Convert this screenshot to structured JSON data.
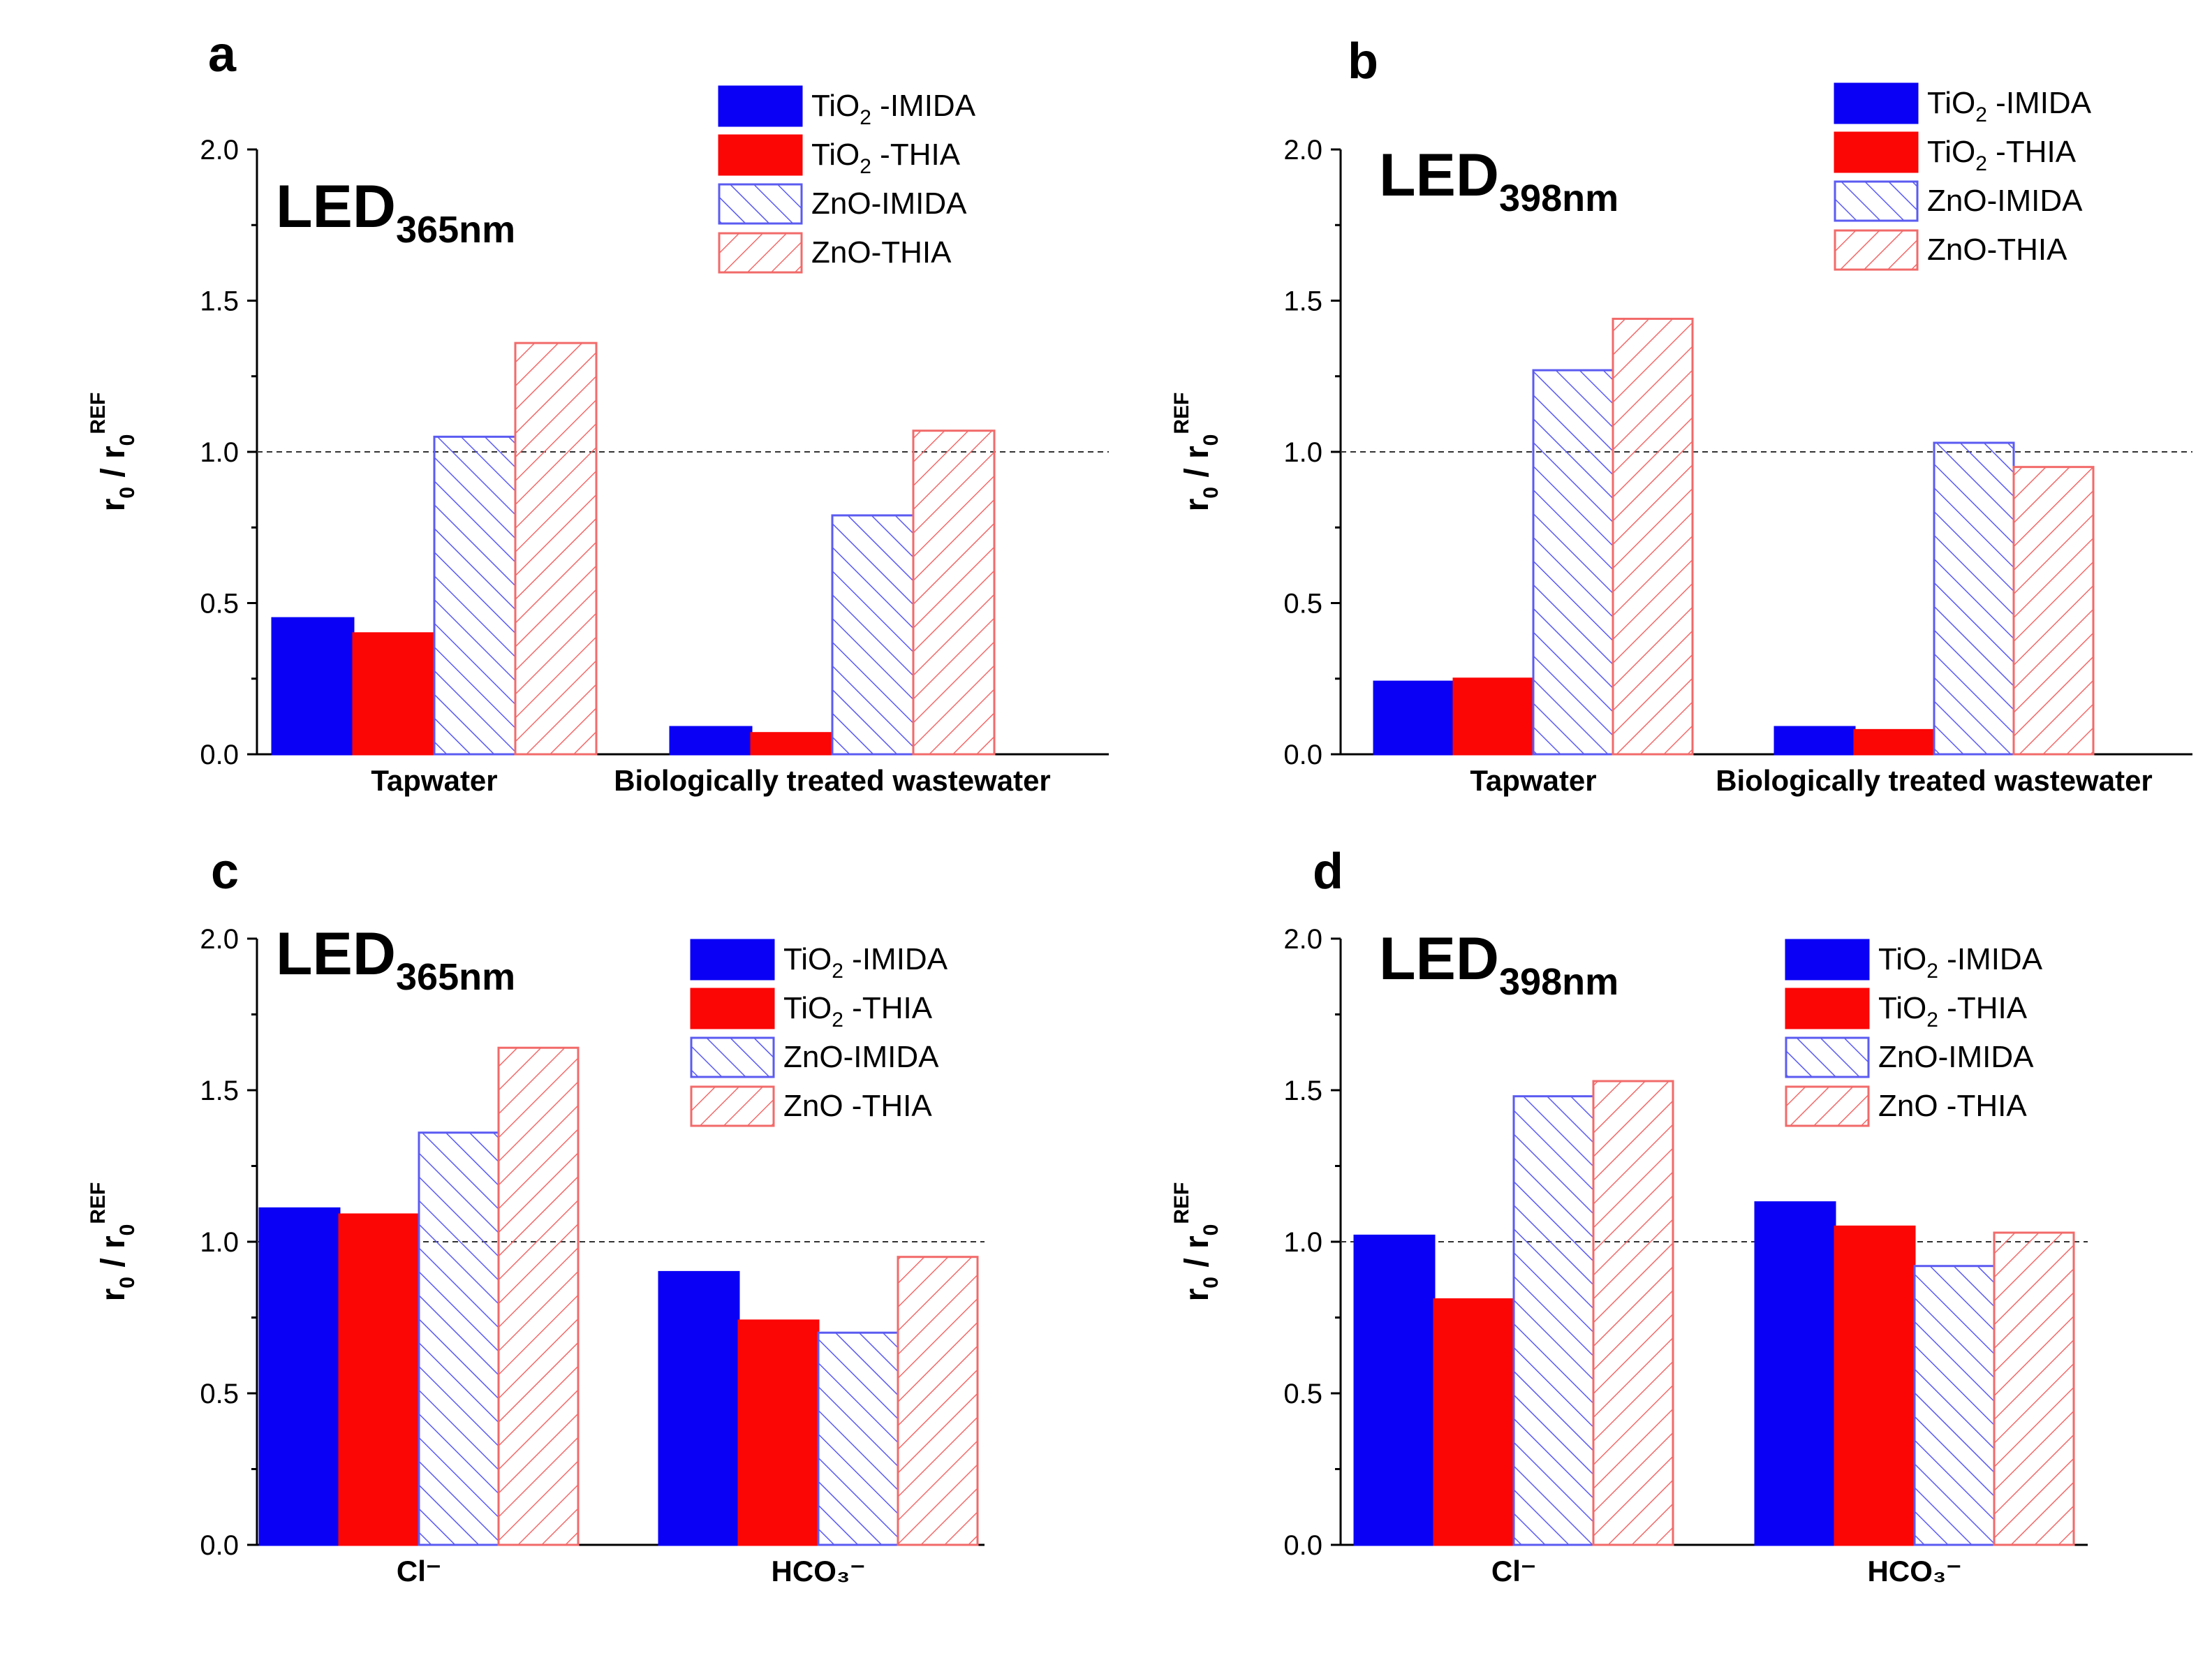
{
  "chart_data": [
    {
      "type": "bar",
      "panel_label": "a",
      "annotation": {
        "base": "LED",
        "sub": "365nm"
      },
      "ylabel": {
        "main": "r",
        "sub": "0",
        "sep": " / r",
        "sub2": "0",
        "sup": "REF"
      },
      "categories": [
        "Tapwater",
        "Biologically treated wastewater"
      ],
      "ylim": [
        0,
        2.0
      ],
      "yticks": [
        "0.0",
        "0.5",
        "1.0",
        "1.5",
        "2.0"
      ],
      "reference_line": 1.0,
      "legend_position": "top-right",
      "series": [
        {
          "name": "TiO2 -IMIDA",
          "legend": {
            "base": "TiO",
            "sub": "2",
            "rest": " -IMIDA"
          },
          "color": "#0a00f5",
          "pattern": "solid",
          "values": [
            0.45,
            0.09
          ]
        },
        {
          "name": "TiO2 -THIA",
          "legend": {
            "base": "TiO",
            "sub": "2",
            "rest": " -THIA"
          },
          "color": "#fc0505",
          "pattern": "solid",
          "values": [
            0.4,
            0.07
          ]
        },
        {
          "name": "ZnO-IMIDA",
          "legend": {
            "base": "ZnO-IMIDA",
            "sub": "",
            "rest": ""
          },
          "color": "#5b5bf2",
          "pattern": "hatch-right",
          "values": [
            1.05,
            0.79
          ]
        },
        {
          "name": "ZnO-THIA",
          "legend": {
            "base": "ZnO-THIA",
            "sub": "",
            "rest": ""
          },
          "color": "#f26a6a",
          "pattern": "hatch-left",
          "values": [
            1.36,
            1.07
          ]
        }
      ]
    },
    {
      "type": "bar",
      "panel_label": "b",
      "annotation": {
        "base": "LED",
        "sub": "398nm"
      },
      "ylabel": {
        "main": "r",
        "sub": "0",
        "sep": " / r",
        "sub2": "0",
        "sup": "REF"
      },
      "categories": [
        "Tapwater",
        "Biologically treated wastewater"
      ],
      "ylim": [
        0,
        2.0
      ],
      "yticks": [
        "0.0",
        "0.5",
        "1.0",
        "1.5",
        "2.0"
      ],
      "reference_line": 1.0,
      "legend_position": "top-right",
      "series": [
        {
          "name": "TiO2 -IMIDA",
          "legend": {
            "base": "TiO",
            "sub": "2",
            "rest": " -IMIDA"
          },
          "color": "#0a00f5",
          "pattern": "solid",
          "values": [
            0.24,
            0.09
          ]
        },
        {
          "name": "TiO2 -THIA",
          "legend": {
            "base": "TiO",
            "sub": "2",
            "rest": " -THIA"
          },
          "color": "#fc0505",
          "pattern": "solid",
          "values": [
            0.25,
            0.08
          ]
        },
        {
          "name": "ZnO-IMIDA",
          "legend": {
            "base": "ZnO-IMIDA",
            "sub": "",
            "rest": ""
          },
          "color": "#5b5bf2",
          "pattern": "hatch-right",
          "values": [
            1.27,
            1.03
          ]
        },
        {
          "name": "ZnO-THIA",
          "legend": {
            "base": "ZnO-THIA",
            "sub": "",
            "rest": ""
          },
          "color": "#f26a6a",
          "pattern": "hatch-left",
          "values": [
            1.44,
            0.95
          ]
        }
      ]
    },
    {
      "type": "bar",
      "panel_label": "c",
      "annotation": {
        "base": "LED",
        "sub": "365nm"
      },
      "ylabel": {
        "main": "r",
        "sub": "0",
        "sep": " / r",
        "sub2": "0",
        "sup": "REF"
      },
      "categories": [
        "Cl⁻",
        "HCO₃⁻"
      ],
      "ylim": [
        0,
        2.0
      ],
      "yticks": [
        "0.0",
        "0.5",
        "1.0",
        "1.5",
        "2.0"
      ],
      "reference_line": 1.0,
      "legend_position": "top-right",
      "series": [
        {
          "name": "TiO2 -IMIDA",
          "legend": {
            "base": "TiO",
            "sub": "2",
            "rest": " -IMIDA"
          },
          "color": "#0a00f5",
          "pattern": "solid",
          "values": [
            1.11,
            0.9
          ]
        },
        {
          "name": "TiO2 -THIA",
          "legend": {
            "base": "TiO",
            "sub": "2",
            "rest": " -THIA"
          },
          "color": "#fc0505",
          "pattern": "solid",
          "values": [
            1.09,
            0.74
          ]
        },
        {
          "name": "ZnO-IMIDA",
          "legend": {
            "base": "ZnO-IMIDA",
            "sub": "",
            "rest": ""
          },
          "color": "#5b5bf2",
          "pattern": "hatch-right",
          "values": [
            1.36,
            0.7
          ]
        },
        {
          "name": "ZnO -THIA",
          "legend": {
            "base": "ZnO -THIA",
            "sub": "",
            "rest": ""
          },
          "color": "#f26a6a",
          "pattern": "hatch-left",
          "values": [
            1.64,
            0.95
          ]
        }
      ]
    },
    {
      "type": "bar",
      "panel_label": "d",
      "annotation": {
        "base": "LED",
        "sub": "398nm"
      },
      "ylabel": {
        "main": "r",
        "sub": "0",
        "sep": " / r",
        "sub2": "0",
        "sup": "REF"
      },
      "categories": [
        "Cl⁻",
        "HCO₃⁻"
      ],
      "ylim": [
        0,
        2.0
      ],
      "yticks": [
        "0.0",
        "0.5",
        "1.0",
        "1.5",
        "2.0"
      ],
      "reference_line": 1.0,
      "legend_position": "top-right",
      "series": [
        {
          "name": "TiO2 -IMIDA",
          "legend": {
            "base": "TiO",
            "sub": "2",
            "rest": " -IMIDA"
          },
          "color": "#0a00f5",
          "pattern": "solid",
          "values": [
            1.02,
            1.13
          ]
        },
        {
          "name": "TiO2 -THIA",
          "legend": {
            "base": "TiO",
            "sub": "2",
            "rest": " -THIA"
          },
          "color": "#fc0505",
          "pattern": "solid",
          "values": [
            0.81,
            1.05
          ]
        },
        {
          "name": "ZnO-IMIDA",
          "legend": {
            "base": "ZnO-IMIDA",
            "sub": "",
            "rest": ""
          },
          "color": "#5b5bf2",
          "pattern": "hatch-right",
          "values": [
            1.48,
            0.92
          ]
        },
        {
          "name": "ZnO -THIA",
          "legend": {
            "base": "ZnO -THIA",
            "sub": "",
            "rest": ""
          },
          "color": "#f26a6a",
          "pattern": "hatch-left",
          "values": [
            1.53,
            1.03
          ]
        }
      ]
    }
  ]
}
